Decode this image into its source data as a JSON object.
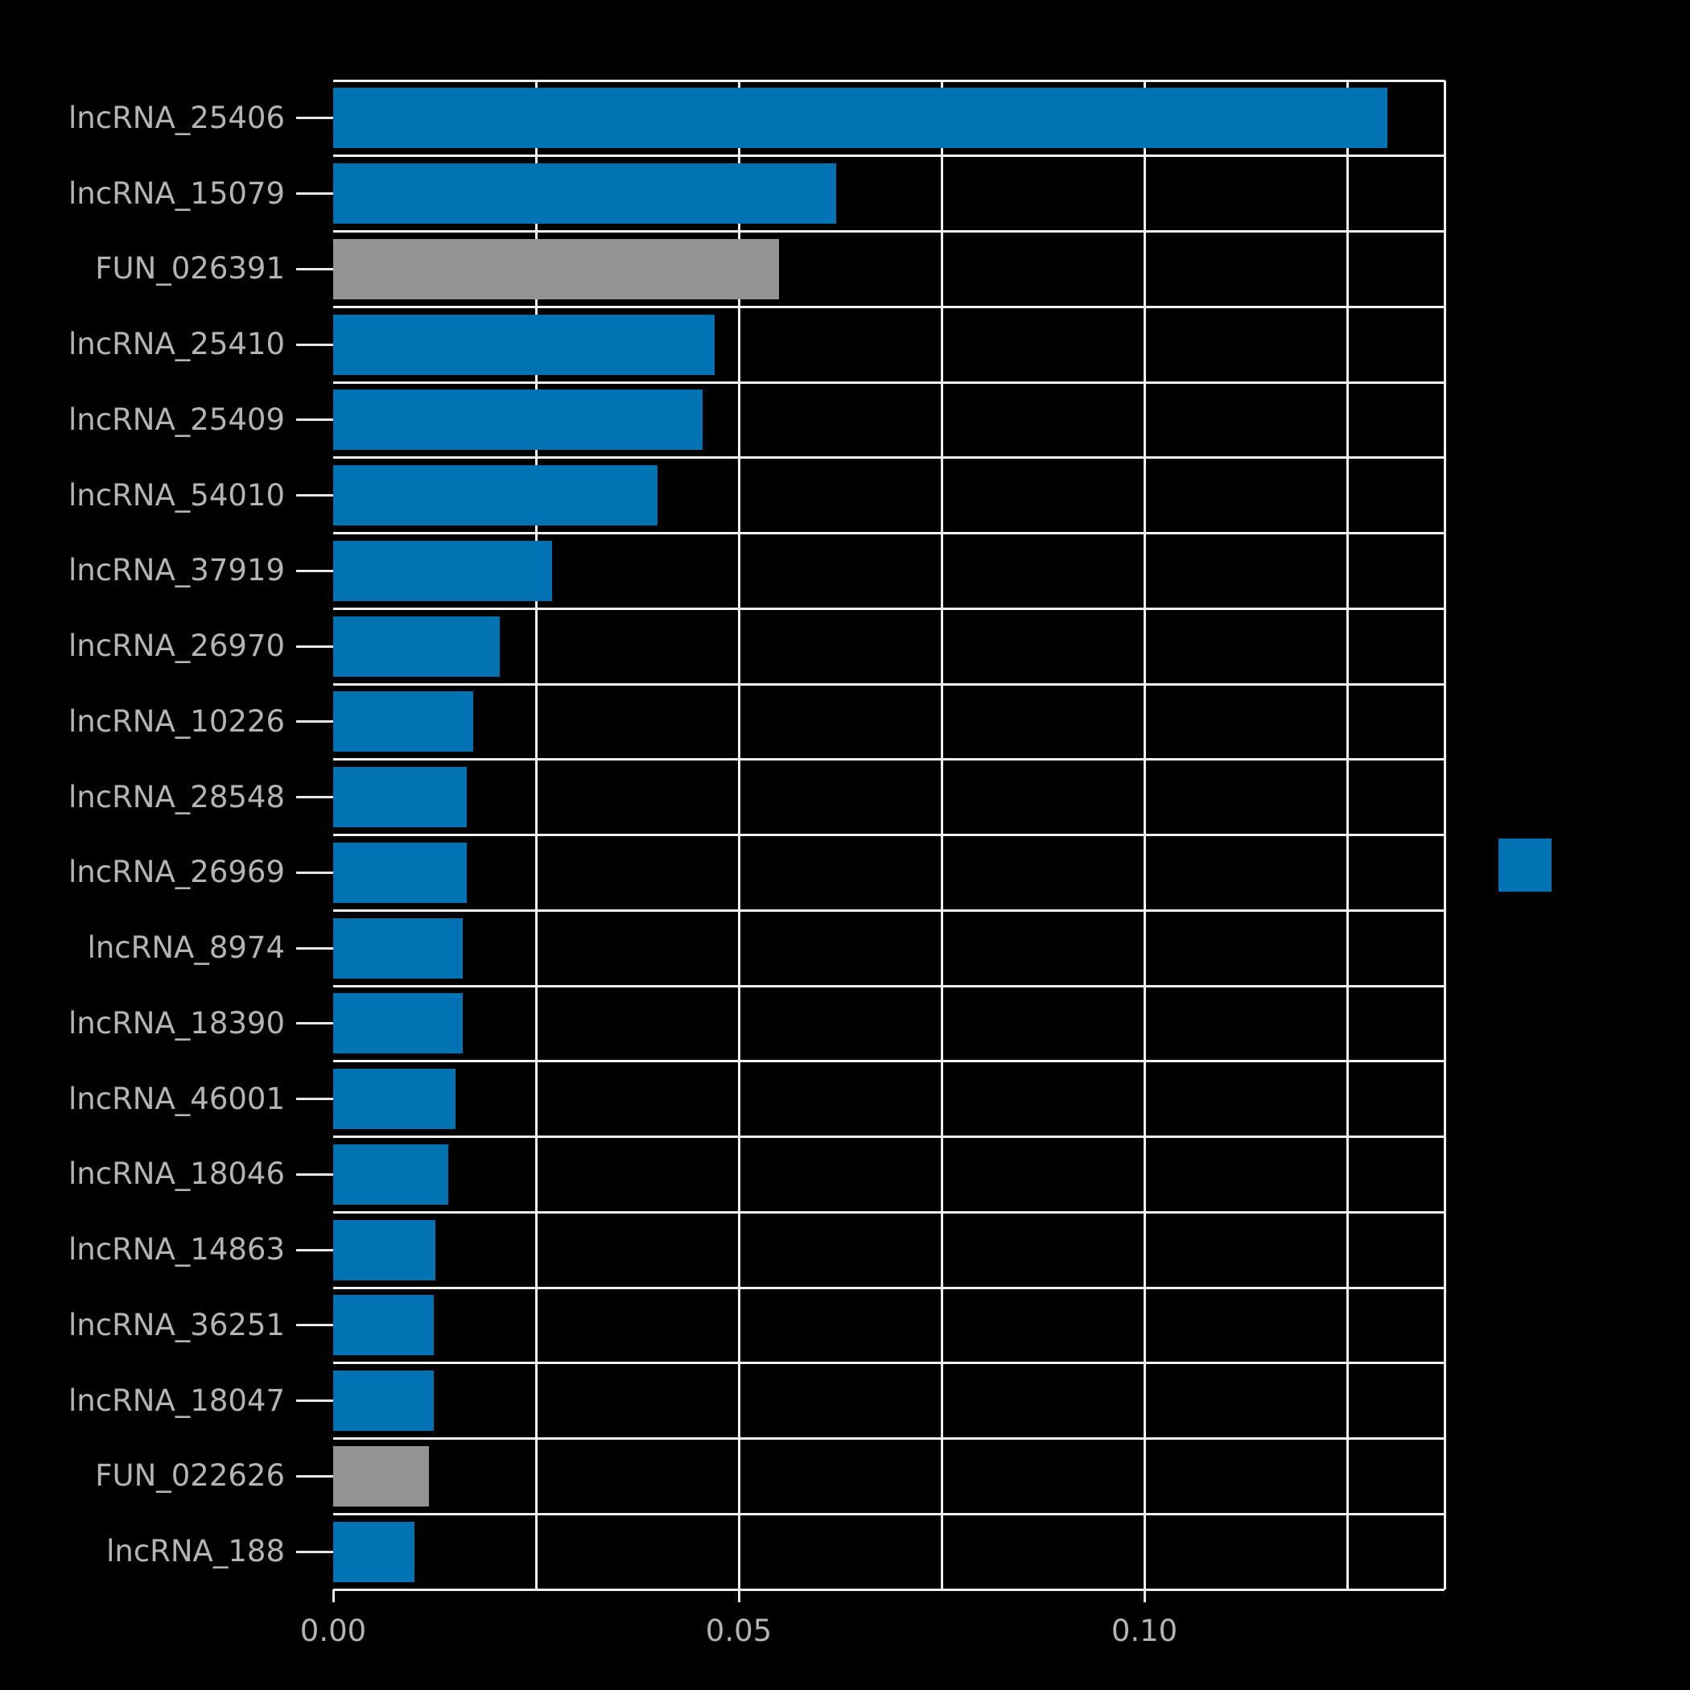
{
  "chart_data": {
    "type": "bar",
    "orientation": "horizontal",
    "title": "",
    "xlabel": "",
    "ylabel": "",
    "categories": [
      "lncRNA_25406",
      "lncRNA_15079",
      "FUN_026391",
      "lncRNA_25410",
      "lncRNA_25409",
      "lncRNA_54010",
      "lncRNA_37919",
      "lncRNA_26970",
      "lncRNA_10226",
      "lncRNA_28548",
      "lncRNA_26969",
      "lncRNA_8974",
      "lncRNA_18390",
      "lncRNA_46001",
      "lncRNA_18046",
      "lncRNA_14863",
      "lncRNA_36251",
      "lncRNA_18047",
      "FUN_022626",
      "lncRNA_188"
    ],
    "values": [
      0.13,
      0.062,
      0.055,
      0.047,
      0.0455,
      0.04,
      0.027,
      0.0205,
      0.0173,
      0.0165,
      0.0165,
      0.016,
      0.016,
      0.0151,
      0.0142,
      0.0126,
      0.0124,
      0.0124,
      0.0118,
      0.01
    ],
    "bar_colors": [
      "blue",
      "blue",
      "gray",
      "blue",
      "blue",
      "blue",
      "blue",
      "blue",
      "blue",
      "blue",
      "blue",
      "blue",
      "blue",
      "blue",
      "blue",
      "blue",
      "blue",
      "blue",
      "gray",
      "blue"
    ],
    "colors": {
      "blue": "#0173b2",
      "gray": "#949494",
      "grid": "#f0f0f0",
      "tick": "#e8e8e8",
      "text": "#b4b4b4",
      "background": "#000000"
    },
    "xlim": [
      0,
      0.137
    ],
    "x_ticks": [
      {
        "value": 0.0,
        "label": "0.00"
      },
      {
        "value": 0.05,
        "label": "0.05"
      },
      {
        "value": 0.1,
        "label": "0.10"
      }
    ],
    "x_minor_gridlines": [
      0.025,
      0.05,
      0.075,
      0.1,
      0.125
    ],
    "grid": true,
    "legend": {
      "position": "right",
      "swatch_color": "blue",
      "label": ""
    }
  }
}
